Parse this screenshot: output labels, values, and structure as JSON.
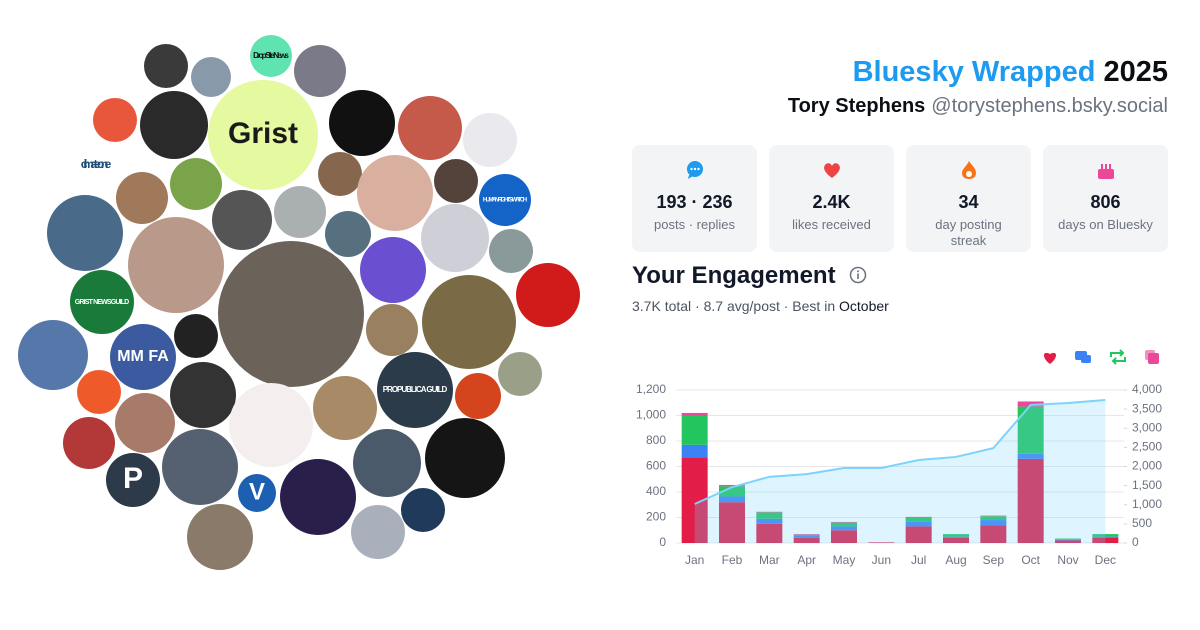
{
  "header": {
    "title": "Bluesky Wrapped",
    "year": "2025",
    "name": "Tory Stephens",
    "handle": "@torystephens.bsky.social"
  },
  "stats": [
    {
      "value": "193 · 236",
      "label": "posts · replies"
    },
    {
      "value": "2.4K",
      "label": "likes received"
    },
    {
      "value": "34",
      "label": "day posting streak"
    },
    {
      "value": "806",
      "label": "days on Bluesky"
    }
  ],
  "avatars": [
    "Grist",
    "Drop Site News",
    "climate one",
    "HUMAN RIGHTS WATCH",
    "GRIST NEWSGUILD",
    "MM FA",
    "PROPUBLICA GUILD",
    "P",
    "V"
  ],
  "chart_data": {
    "type": "bar",
    "title": "Your Engagement",
    "summary": "3.7K total · 8.7 avg/post · Best in",
    "best_month": "October",
    "categories": [
      "Jan",
      "Feb",
      "Mar",
      "Apr",
      "May",
      "Jun",
      "Jul",
      "Aug",
      "Sep",
      "Oct",
      "Nov",
      "Dec"
    ],
    "series": [
      {
        "color": "#e11d48",
        "values": [
          670,
          320,
          150,
          40,
          100,
          5,
          130,
          40,
          140,
          660,
          20,
          40
        ]
      },
      {
        "color": "#3b82f6",
        "values": [
          100,
          45,
          40,
          15,
          30,
          0,
          40,
          10,
          40,
          40,
          5,
          10
        ]
      },
      {
        "color": "#22c55e",
        "values": [
          230,
          80,
          50,
          10,
          30,
          0,
          30,
          20,
          30,
          370,
          10,
          20
        ]
      },
      {
        "color": "#ec4899",
        "values": [
          20,
          10,
          5,
          5,
          5,
          0,
          5,
          0,
          5,
          40,
          0,
          0
        ]
      },
      {
        "type": "line",
        "axis": "y2",
        "color": "#7dd3fc",
        "values": [
          1020,
          1460,
          1730,
          1800,
          1960,
          1960,
          2170,
          2250,
          2480,
          3610,
          3660,
          3740
        ]
      }
    ],
    "ylim": [
      0,
      1200
    ],
    "yticks": [
      0,
      200,
      400,
      600,
      800,
      {
        "value": 1000,
        "label": "1,000"
      },
      {
        "value": 1200,
        "label": "1,200"
      }
    ],
    "y2lim": [
      0,
      4000
    ],
    "y2ticks": [
      0,
      500,
      {
        "value": 1000,
        "label": "1,000"
      },
      {
        "value": 1500,
        "label": "1,500"
      },
      {
        "value": 2000,
        "label": "2,000"
      },
      {
        "value": 2500,
        "label": "2,500"
      },
      {
        "value": 3000,
        "label": "3,000"
      },
      {
        "value": 3500,
        "label": "3,500"
      },
      {
        "value": 4000,
        "label": "4,000"
      }
    ],
    "grid": true
  }
}
